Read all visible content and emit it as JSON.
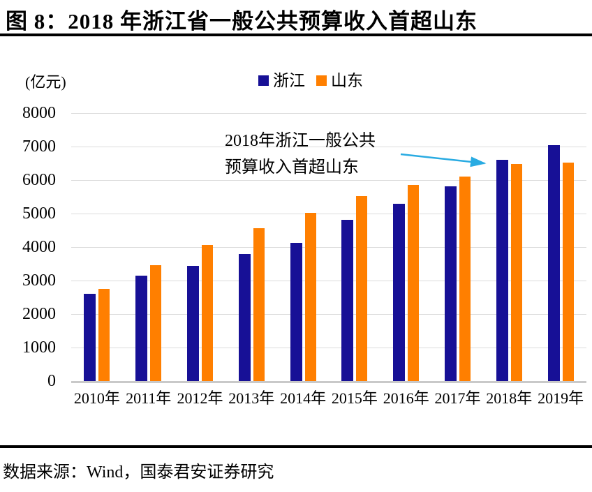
{
  "header": {
    "title": "图 8：2018 年浙江省一般公共预算收入首超山东"
  },
  "chart_data": {
    "type": "bar",
    "title": "2018 年浙江省一般公共预算收入首超山东",
    "unit_label": "(亿元)",
    "xlabel": "",
    "ylabel": "亿元",
    "categories": [
      "2010年",
      "2011年",
      "2012年",
      "2013年",
      "2014年",
      "2015年",
      "2016年",
      "2017年",
      "2018年",
      "2019年"
    ],
    "series": [
      {
        "name": "浙江",
        "color": "#171096",
        "values": [
          2608,
          3151,
          3441,
          3797,
          4122,
          4810,
          5302,
          5803,
          6598,
          7048
        ]
      },
      {
        "name": "山东",
        "color": "#FF7F00",
        "values": [
          2749,
          3456,
          4059,
          4560,
          5027,
          5529,
          5860,
          6099,
          6485,
          6527
        ]
      }
    ],
    "ylim": [
      0,
      8000
    ],
    "yticks": [
      0,
      1000,
      2000,
      3000,
      4000,
      5000,
      6000,
      7000,
      8000
    ],
    "grid": true,
    "legend_position": "top-center",
    "annotation": {
      "line1": "2018年浙江一般公共",
      "line2": "预算收入首超山东",
      "arrow_color": "#29ABE2"
    }
  },
  "footer": {
    "source": "数据来源：Wind，国泰君安证券研究"
  }
}
